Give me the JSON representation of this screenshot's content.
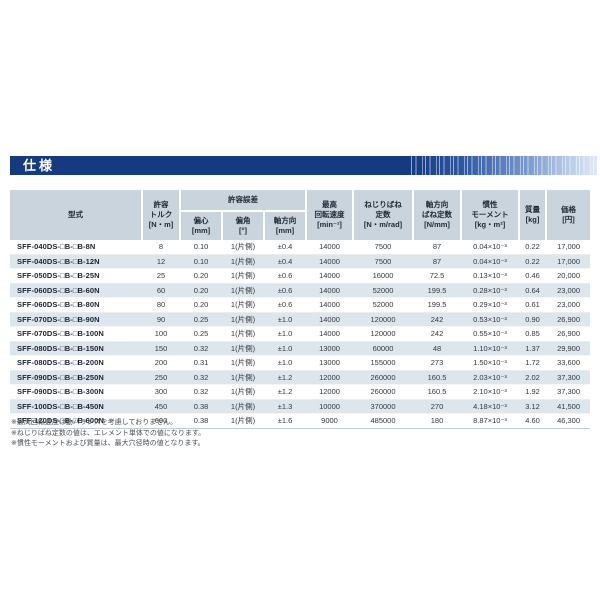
{
  "page_title": "仕様",
  "colors": {
    "accent_navy": "#153a7f",
    "table_header_bg": "#c9d4dd",
    "row_alt_bg": "#dde6ec",
    "title_text": "#ffffff"
  },
  "table": {
    "group_header": "許容誤差",
    "headers": {
      "model": "型式",
      "torque": "許容\nトルク\n[N・m]",
      "eccentricity": "偏心\n[mm]",
      "angle": "偏角\n[°]",
      "axial": "軸方向\n[mm]",
      "max_speed": "最高\n回転速度\n[min⁻¹]",
      "torsional_spring": "ねじりばね\n定数\n[N・m/rad]",
      "axial_spring": "軸方向\nばね定数\n[N/mm]",
      "inertia": "慣性\nモーメント\n[kg・m²]",
      "mass": "質量\n[kg]",
      "price": "価格\n[円]"
    },
    "col_names": [
      "model",
      "allowable-torque",
      "eccentricity",
      "angular-misalignment",
      "axial-misalignment",
      "max-rotation-speed",
      "torsional-spring-constant",
      "axial-spring-constant",
      "moment-of-inertia",
      "mass",
      "price"
    ],
    "rows": [
      [
        "SFF-040DS-□B-□B-8N",
        "8",
        "0.10",
        "1(片側)",
        "±0.4",
        "14000",
        "7500",
        "87",
        "0.04×10⁻³",
        "0.22",
        "17,000"
      ],
      [
        "SFF-040DS-□B-□B-12N",
        "12",
        "0.10",
        "1(片側)",
        "±0.4",
        "14000",
        "7500",
        "87",
        "0.04×10⁻³",
        "0.22",
        "17,000"
      ],
      [
        "SFF-050DS-□B-□B-25N",
        "25",
        "0.20",
        "1(片側)",
        "±0.6",
        "14000",
        "16000",
        "72.5",
        "0.13×10⁻³",
        "0.46",
        "20,000"
      ],
      [
        "SFF-060DS-□B-□B-60N",
        "60",
        "0.20",
        "1(片側)",
        "±0.6",
        "14000",
        "52000",
        "199.5",
        "0.28×10⁻³",
        "0.64",
        "23,000"
      ],
      [
        "SFF-060DS-□B-□B-80N",
        "80",
        "0.20",
        "1(片側)",
        "±0.6",
        "14000",
        "52000",
        "199.5",
        "0.29×10⁻³",
        "0.61",
        "23,000"
      ],
      [
        "SFF-070DS-□B-□B-90N",
        "90",
        "0.25",
        "1(片側)",
        "±1.0",
        "14000",
        "120000",
        "242",
        "0.53×10⁻³",
        "0.90",
        "26,900"
      ],
      [
        "SFF-070DS-□B-□B-100N",
        "100",
        "0.25",
        "1(片側)",
        "±1.0",
        "14000",
        "120000",
        "242",
        "0.55×10⁻³",
        "0.85",
        "26,900"
      ],
      [
        "SFF-080DS-□B-□B-150N",
        "150",
        "0.32",
        "1(片側)",
        "±1.0",
        "13000",
        "60000",
        "48",
        "1.10×10⁻³",
        "1.37",
        "29,900"
      ],
      [
        "SFF-080DS-□B-□B-200N",
        "200",
        "0.31",
        "1(片側)",
        "±1.0",
        "13000",
        "155000",
        "273",
        "1.50×10⁻³",
        "1.72",
        "33,600"
      ],
      [
        "SFF-090DS-□B-□B-250N",
        "250",
        "0.32",
        "1(片側)",
        "±1.2",
        "12000",
        "260000",
        "160.5",
        "2.03×10⁻³",
        "2.02",
        "37,300"
      ],
      [
        "SFF-090DS-□B-□B-300N",
        "300",
        "0.32",
        "1(片側)",
        "±1.2",
        "12000",
        "260000",
        "160.5",
        "2.10×10⁻³",
        "1.92",
        "37,300"
      ],
      [
        "SFF-100DS-□B-□B-450N",
        "450",
        "0.38",
        "1(片側)",
        "±1.3",
        "10000",
        "370000",
        "270",
        "4.18×10⁻³",
        "3.12",
        "41,500"
      ],
      [
        "SFF-120DS-□B-□B-600N",
        "600",
        "0.38",
        "1(片側)",
        "±1.6",
        "9000",
        "485000",
        "180",
        "8.87×10⁻³",
        "4.60",
        "46,300"
      ]
    ]
  },
  "footnotes": [
    "※最高回転速度は動バランスを考慮しておりません。",
    "※ねじりばね定数の値は、エレメント単体での値になります。",
    "※慣性モーメントおよび質量は、最大穴径時の値となります。"
  ]
}
